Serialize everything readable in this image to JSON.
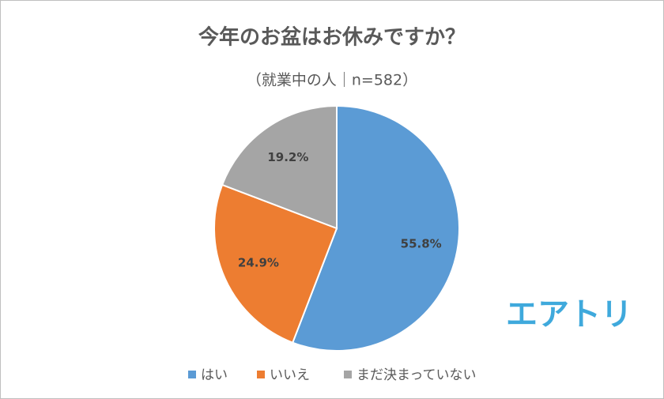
{
  "chart_data": {
    "type": "pie",
    "title": "今年のお盆はお休みですか？",
    "subtitle": "（就業中の人｜n=582）",
    "categories": [
      "はい",
      "いいえ",
      "まだ決まっていない"
    ],
    "values": [
      55.8,
      24.9,
      19.2
    ],
    "value_labels": [
      "55.8%",
      "24.9%",
      "19.2%"
    ],
    "colors": [
      "#5b9bd5",
      "#ed7d31",
      "#a5a5a5"
    ],
    "legend": "bottom",
    "logo": "エアトリ"
  }
}
